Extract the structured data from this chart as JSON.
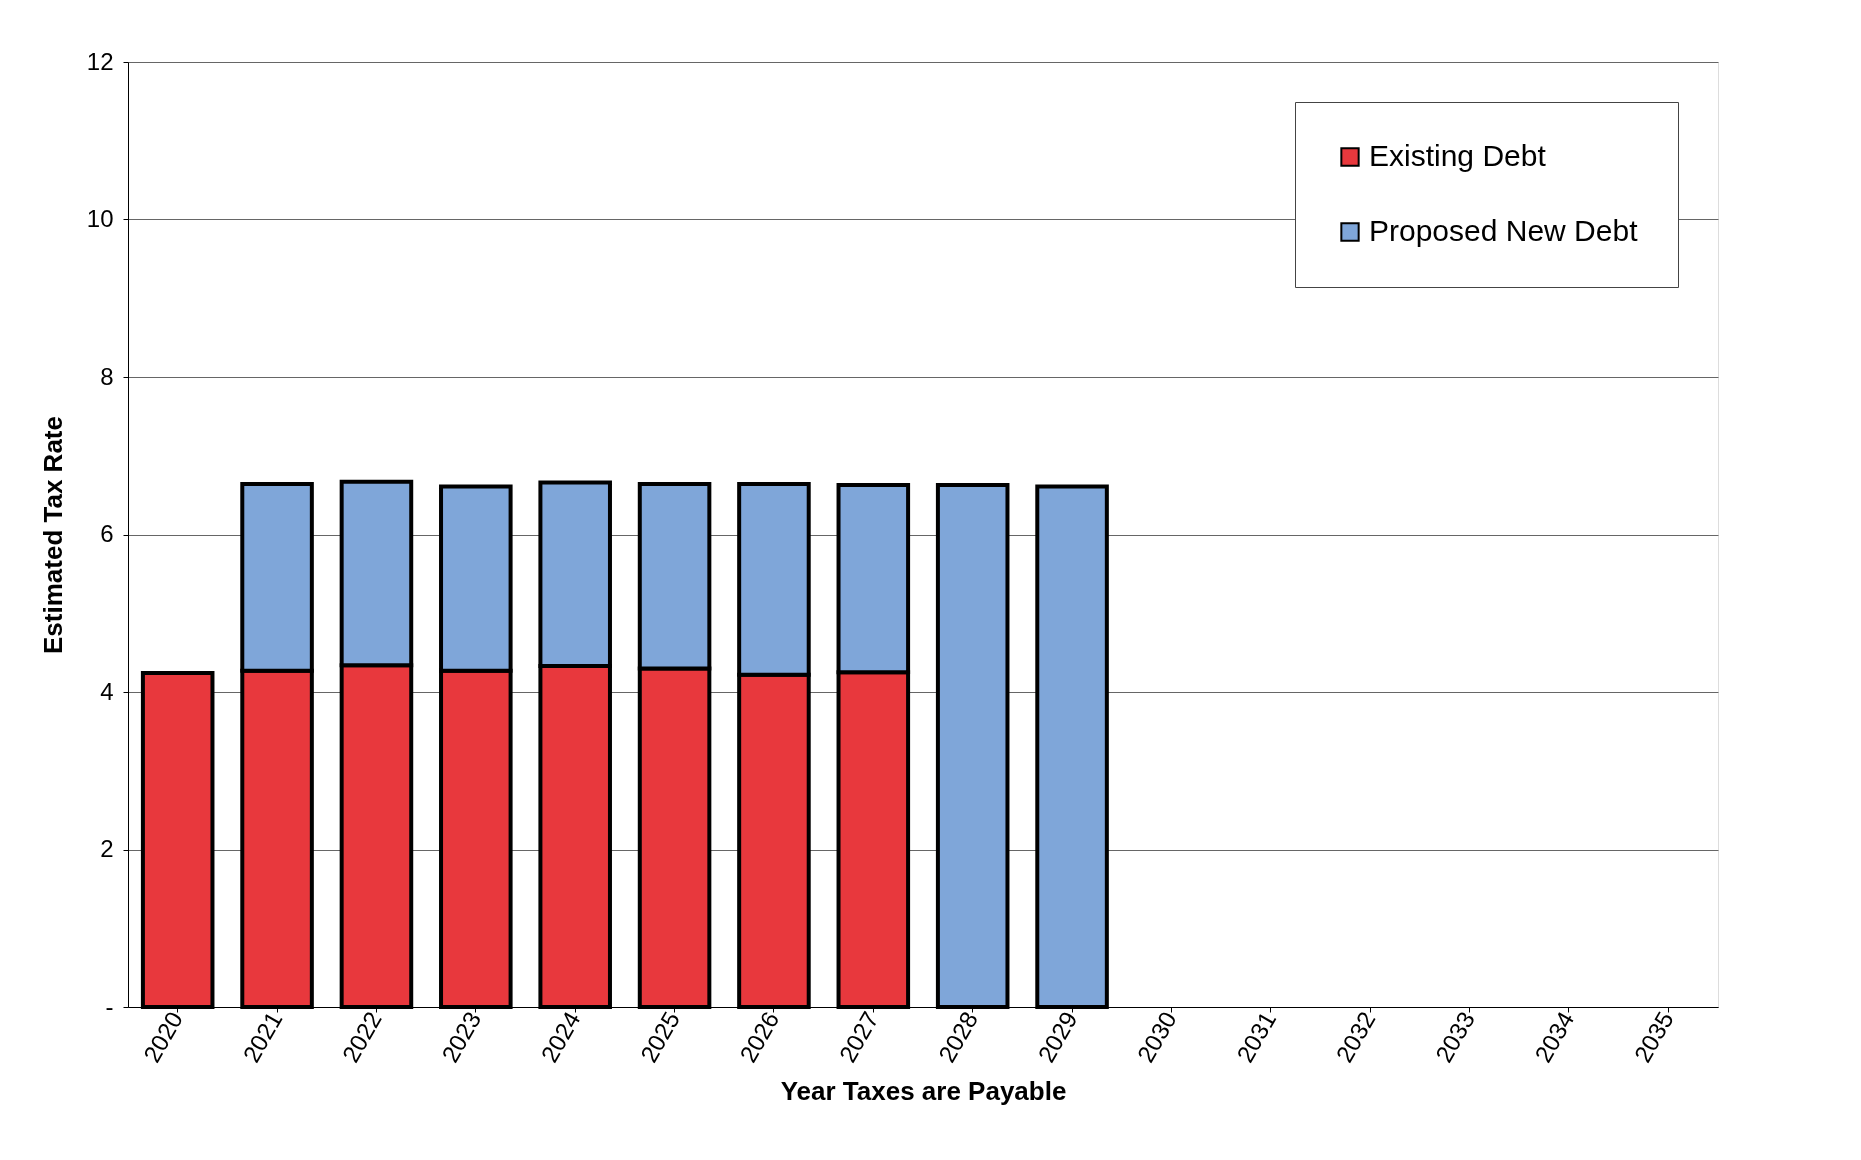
{
  "chart_data": {
    "type": "bar",
    "stacked": true,
    "xlabel": "Year Taxes are Payable",
    "ylabel": "Estimated Tax Rate",
    "categories": [
      "2020",
      "2021",
      "2022",
      "2023",
      "2024",
      "2025",
      "2026",
      "2027",
      "2028",
      "2029",
      "2030",
      "2031",
      "2032",
      "2033",
      "2034",
      "2035"
    ],
    "series": [
      {
        "name": "Existing Debt",
        "color": "#e8383d",
        "values": [
          4.24,
          4.27,
          4.34,
          4.27,
          4.33,
          4.3,
          4.22,
          4.25,
          null,
          null,
          null,
          null,
          null,
          null,
          null,
          null
        ]
      },
      {
        "name": "Proposed New Debt",
        "color": "#7fa6d9",
        "values": [
          null,
          2.37,
          2.33,
          2.34,
          2.33,
          2.34,
          2.42,
          2.38,
          6.63,
          6.61,
          null,
          null,
          null,
          null,
          null,
          null
        ]
      }
    ],
    "ylim": [
      0,
      12
    ],
    "yticks": [
      {
        "value": 0,
        "label": "-"
      },
      2,
      4,
      6,
      8,
      10,
      12
    ],
    "grid": "y",
    "legend": "top right"
  }
}
